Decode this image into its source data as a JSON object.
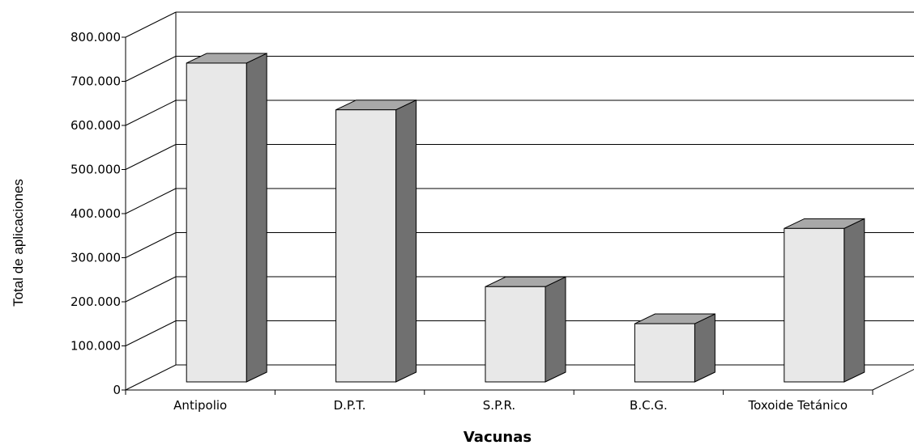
{
  "chart_data": {
    "type": "bar",
    "style": "3d",
    "categories": [
      "Antipolio",
      "D.P.T.",
      "S.P.R.",
      "B.C.G.",
      "Toxoide Tetánico"
    ],
    "values": [
      723000,
      617000,
      216000,
      132000,
      348000
    ],
    "title": "",
    "xlabel": "Vacunas",
    "ylabel": "Total de aplicaciones",
    "ylim": [
      0,
      800000
    ],
    "yticks": [
      0,
      100000,
      200000,
      300000,
      400000,
      500000,
      600000,
      700000,
      800000
    ],
    "ytick_labels": [
      "0",
      "100.000",
      "200.000",
      "300.000",
      "400.000",
      "500.000",
      "600.000",
      "700.000",
      "800.000"
    ],
    "grid": true,
    "legend": "none",
    "colors": {
      "bar_front": "#e8e8e8",
      "bar_top": "#a8a8a8",
      "bar_side": "#707070",
      "grid": "#000000"
    }
  }
}
